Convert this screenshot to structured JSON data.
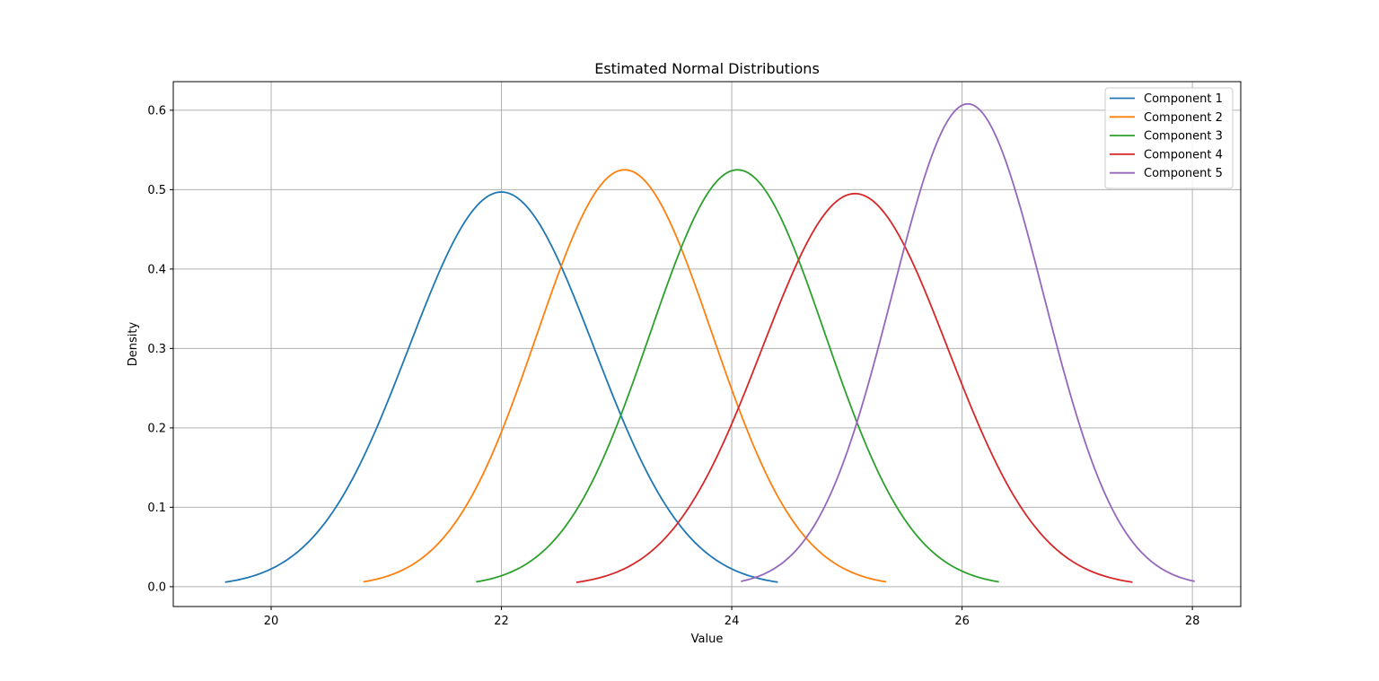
{
  "chart_data": {
    "type": "line",
    "title": "Estimated Normal Distributions",
    "xlabel": "Value",
    "ylabel": "Density",
    "xlim": [
      19.15,
      28.42
    ],
    "ylim": [
      -0.025,
      0.636
    ],
    "xticks": [
      20,
      22,
      24,
      26,
      28
    ],
    "xtick_labels": [
      "20",
      "22",
      "24",
      "26",
      "28"
    ],
    "yticks": [
      0.0,
      0.1,
      0.2,
      0.3,
      0.4,
      0.5,
      0.6
    ],
    "ytick_labels": [
      "0.0",
      "0.1",
      "0.2",
      "0.3",
      "0.4",
      "0.5",
      "0.6"
    ],
    "grid": true,
    "legend_position": "top-right",
    "curve_shape": "normal density",
    "series": [
      {
        "name": "Component 1",
        "color": "#1f77b4",
        "mean": 22.0,
        "std": 0.803,
        "x_range": [
          19.6,
          24.4
        ],
        "peak": 0.497
      },
      {
        "name": "Component 2",
        "color": "#ff7f0e",
        "mean": 23.07,
        "std": 0.76,
        "x_range": [
          20.8,
          25.34
        ],
        "peak": 0.525
      },
      {
        "name": "Component 3",
        "color": "#2ca02c",
        "mean": 24.05,
        "std": 0.76,
        "x_range": [
          21.78,
          26.32
        ],
        "peak": 0.525
      },
      {
        "name": "Component 4",
        "color": "#d62728",
        "mean": 25.07,
        "std": 0.806,
        "x_range": [
          22.65,
          27.48
        ],
        "peak": 0.495
      },
      {
        "name": "Component 5",
        "color": "#9467bd",
        "mean": 26.05,
        "std": 0.656,
        "x_range": [
          24.08,
          28.02
        ],
        "peak": 0.608
      }
    ]
  }
}
